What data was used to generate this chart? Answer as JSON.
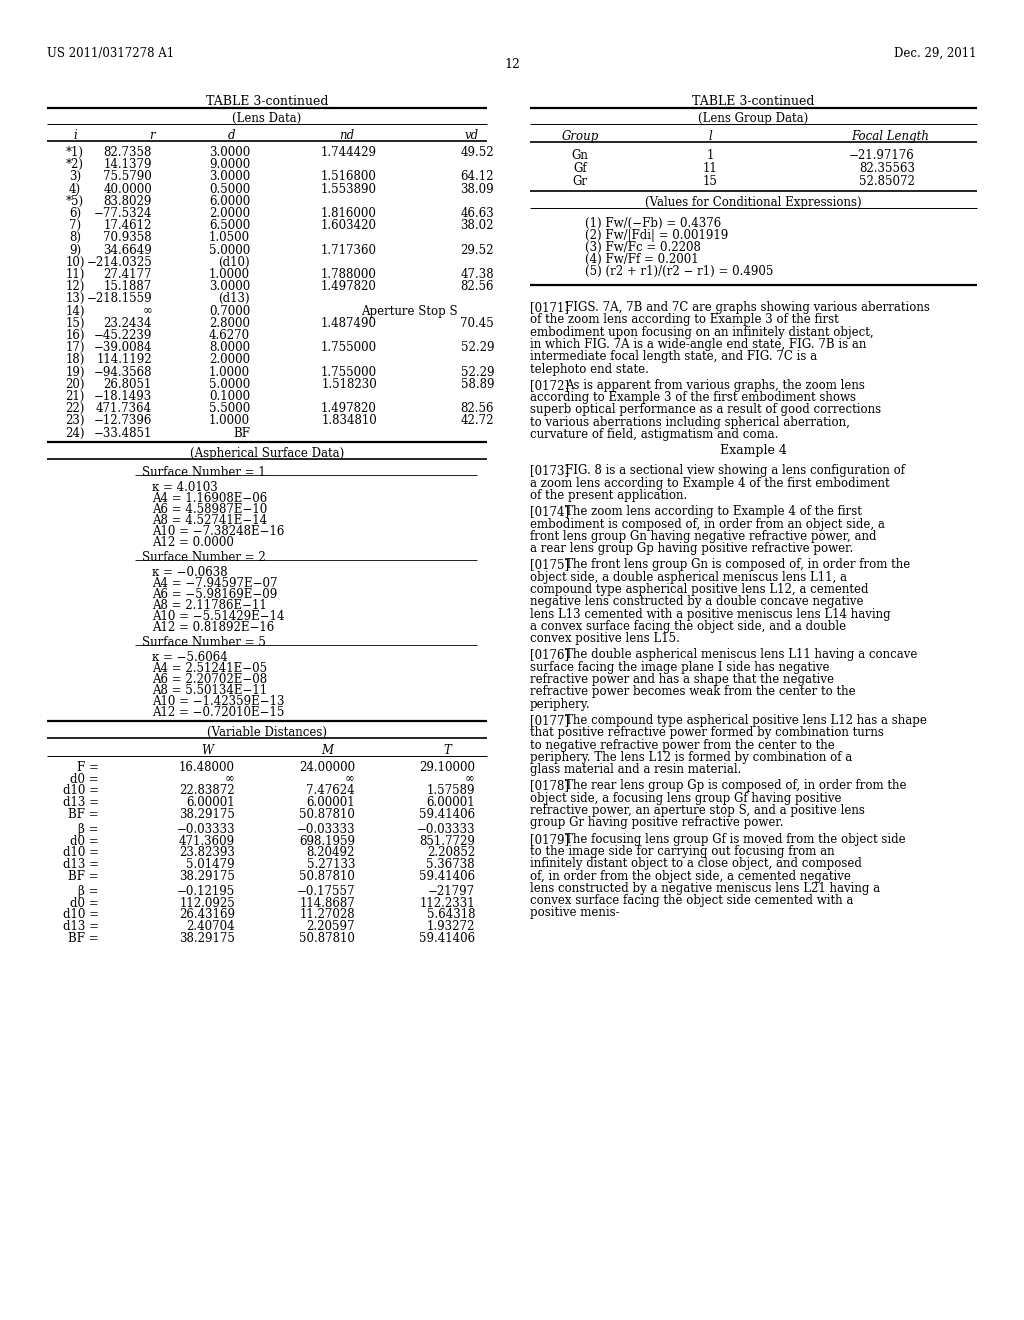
{
  "header_left": "US 2011/0317278 A1",
  "header_right": "Dec. 29, 2011",
  "page_number": "12",
  "bg_color": "#ffffff",
  "left_table_title": "TABLE 3-continued",
  "left_table_subtitle": "(Lens Data)",
  "left_table_headers": [
    "i",
    "r",
    "d",
    "nd",
    "vd"
  ],
  "left_table_rows": [
    [
      "*1)",
      "82.7358",
      "3.0000",
      "1.744429",
      "49.52"
    ],
    [
      "*2)",
      "14.1379",
      "9.0000",
      "",
      ""
    ],
    [
      "3)",
      "75.5790",
      "3.0000",
      "1.516800",
      "64.12"
    ],
    [
      "4)",
      "40.0000",
      "0.5000",
      "1.553890",
      "38.09"
    ],
    [
      "*5)",
      "83.8029",
      "6.0000",
      "",
      ""
    ],
    [
      "6)",
      "−77.5324",
      "2.0000",
      "1.816000",
      "46.63"
    ],
    [
      "7)",
      "17.4612",
      "6.5000",
      "1.603420",
      "38.02"
    ],
    [
      "8)",
      "70.9358",
      "1.0500",
      "",
      ""
    ],
    [
      "9)",
      "34.6649",
      "5.0000",
      "1.717360",
      "29.52"
    ],
    [
      "10)",
      "−214.0325",
      "(d10)",
      "",
      ""
    ],
    [
      "11)",
      "27.4177",
      "1.0000",
      "1.788000",
      "47.38"
    ],
    [
      "12)",
      "15.1887",
      "3.0000",
      "1.497820",
      "82.56"
    ],
    [
      "13)",
      "−218.1559",
      "(d13)",
      "",
      ""
    ],
    [
      "14)",
      "∞",
      "0.7000",
      "Aperture Stop S",
      ""
    ],
    [
      "15)",
      "23.2434",
      "2.8000",
      "1.487490",
      "70.45"
    ],
    [
      "16)",
      "−45.2239",
      "4.6270",
      "",
      ""
    ],
    [
      "17)",
      "−39.0084",
      "8.0000",
      "1.755000",
      "52.29"
    ],
    [
      "18)",
      "114.1192",
      "2.0000",
      "",
      ""
    ],
    [
      "19)",
      "−94.3568",
      "1.0000",
      "1.755000",
      "52.29"
    ],
    [
      "20)",
      "26.8051",
      "5.0000",
      "1.518230",
      "58.89"
    ],
    [
      "21)",
      "−18.1493",
      "0.1000",
      "",
      ""
    ],
    [
      "22)",
      "471.7364",
      "5.5000",
      "1.497820",
      "82.56"
    ],
    [
      "23)",
      "−12.7396",
      "1.0000",
      "1.834810",
      "42.72"
    ],
    [
      "24)",
      "−33.4851",
      "BF",
      "",
      ""
    ]
  ],
  "aspherical_title": "(Aspherical Surface Data)",
  "aspherical_sections": [
    {
      "header": "Surface Number = 1",
      "lines": [
        "κ = 4.0103",
        "A4 = 1.16908E−06",
        "A6 = 4.58987E−10",
        "A8 = 4.52741E−14",
        "A10 = −7.38248E−16",
        "A12 = 0.0000"
      ]
    },
    {
      "header": "Surface Number = 2",
      "lines": [
        "κ = −0.0638",
        "A4 = −7.94597E−07",
        "A6 = −5.98169E−09",
        "A8 = 2.11786E−11",
        "A10 = −5.51429E−14",
        "A12 = 0.81892E−16"
      ]
    },
    {
      "header": "Surface Number = 5",
      "lines": [
        "κ = −5.6064",
        "A4 = 2.51241E−05",
        "A6 = 2.20702E−08",
        "A8 = 5.50134E−11",
        "A10 = −1.42359E−13",
        "A12 = −0.72010E−15"
      ]
    }
  ],
  "variable_distances_title": "(Variable Distances)",
  "variable_headers": [
    "W",
    "M",
    "T"
  ],
  "variable_rows_group1": [
    [
      "F =",
      "16.48000",
      "24.00000",
      "29.10000"
    ],
    [
      "d0 =",
      "∞",
      "∞",
      "∞"
    ],
    [
      "d10 =",
      "22.83872",
      "7.47624",
      "1.57589"
    ],
    [
      "d13 =",
      "6.00001",
      "6.00001",
      "6.00001"
    ],
    [
      "BF =",
      "38.29175",
      "50.87810",
      "59.41406"
    ]
  ],
  "variable_rows_group2": [
    [
      "β =",
      "−0.03333",
      "−0.03333",
      "−0.03333"
    ],
    [
      "d0 =",
      "471.3609",
      "698.1959",
      "851.7729"
    ],
    [
      "d10 =",
      "23.82393",
      "8.20492",
      "2.20852"
    ],
    [
      "d13 =",
      "5.01479",
      "5.27133",
      "5.36738"
    ],
    [
      "BF =",
      "38.29175",
      "50.87810",
      "59.41406"
    ]
  ],
  "variable_rows_group3": [
    [
      "β =",
      "−0.12195",
      "−0.17557",
      "−21797"
    ],
    [
      "d0 =",
      "112.0925",
      "114.8687",
      "112.2331"
    ],
    [
      "d10 =",
      "26.43169",
      "11.27028",
      "5.64318"
    ],
    [
      "d13 =",
      "2.40704",
      "2.20597",
      "1.93272"
    ],
    [
      "BF =",
      "38.29175",
      "50.87810",
      "59.41406"
    ]
  ],
  "right_table_title": "TABLE 3-continued",
  "right_table_subtitle": "(Lens Group Data)",
  "right_table_headers": [
    "Group",
    "l",
    "Focal Length"
  ],
  "right_table_rows": [
    [
      "Gn",
      "1",
      "−21.97176"
    ],
    [
      "Gf",
      "11",
      "82.35563"
    ],
    [
      "Gr",
      "15",
      "52.85072"
    ]
  ],
  "conditional_title": "(Values for Conditional Expressions)",
  "conditional_lines": [
    "(1) Fw/(−Fb) = 0.4376",
    "(2) Fw/|Fdi| = 0.001919",
    "(3) Fw/Fc = 0.2208",
    "(4) Fw/Ff = 0.2001",
    "(5) (r2 + r1)/(r2 − r1) = 0.4905"
  ],
  "right_paragraphs": [
    {
      "tag": "[0171]",
      "indent": true,
      "text": "FIGS. 7A, 7B and 7C are graphs showing various aberrations of the zoom lens according to Example 3 of the first embodiment upon focusing on an infinitely distant object, in which FIG. 7A is a wide-angle end state, FIG. 7B is an intermediate focal length state, and FIG. 7C is a telephoto end state."
    },
    {
      "tag": "[0172]",
      "indent": true,
      "text": "As is apparent from various graphs, the zoom lens according to Example 3 of the first embodiment shows superb optical performance as a result of good corrections to various aberrations including spherical aberration, curvature of field, astigmatism and coma."
    },
    {
      "tag": "Example 4",
      "indent": false,
      "text": ""
    },
    {
      "tag": "[0173]",
      "indent": true,
      "text": "FIG. 8 is a sectional view showing a lens configuration of a zoom lens according to Example 4 of the first embodiment of the present application."
    },
    {
      "tag": "[0174]",
      "indent": true,
      "text": "The zoom lens according to Example 4 of the first embodiment is composed of, in order from an object side, a front lens group Gn having negative refractive power, and a rear lens group Gp having positive refractive power."
    },
    {
      "tag": "[0175]",
      "indent": true,
      "text": "The front lens group Gn is composed of, in order from the object side, a double aspherical meniscus lens L11, a compound type aspherical positive lens L12, a cemented negative lens constructed by a double concave negative lens L13 cemented with a positive meniscus lens L14 having a convex surface facing the object side, and a double convex positive lens L15."
    },
    {
      "tag": "[0176]",
      "indent": true,
      "text": "The double aspherical meniscus lens L11 having a concave surface facing the image plane I side has negative refractive power and has a shape that the negative refractive power becomes weak from the center to the periphery."
    },
    {
      "tag": "[0177]",
      "indent": true,
      "text": "The compound type aspherical positive lens L12 has a shape that positive refractive power formed by combination turns to negative refractive power from the center to the periphery. The lens L12 is formed by combination of a glass material and a resin material."
    },
    {
      "tag": "[0178]",
      "indent": true,
      "text": "The rear lens group Gp is composed of, in order from the object side, a focusing lens group Gf having positive refractive power, an aperture stop S, and a positive lens group Gr having positive refractive power."
    },
    {
      "tag": "[0179]",
      "indent": true,
      "text": "The focusing lens group Gf is moved from the object side to the image side for carrying out focusing from an infinitely distant object to a close object, and composed of, in order from the object side, a cemented negative lens constructed by a negative meniscus lens L21 having a convex surface facing the object side cemented with a positive menis-"
    }
  ]
}
